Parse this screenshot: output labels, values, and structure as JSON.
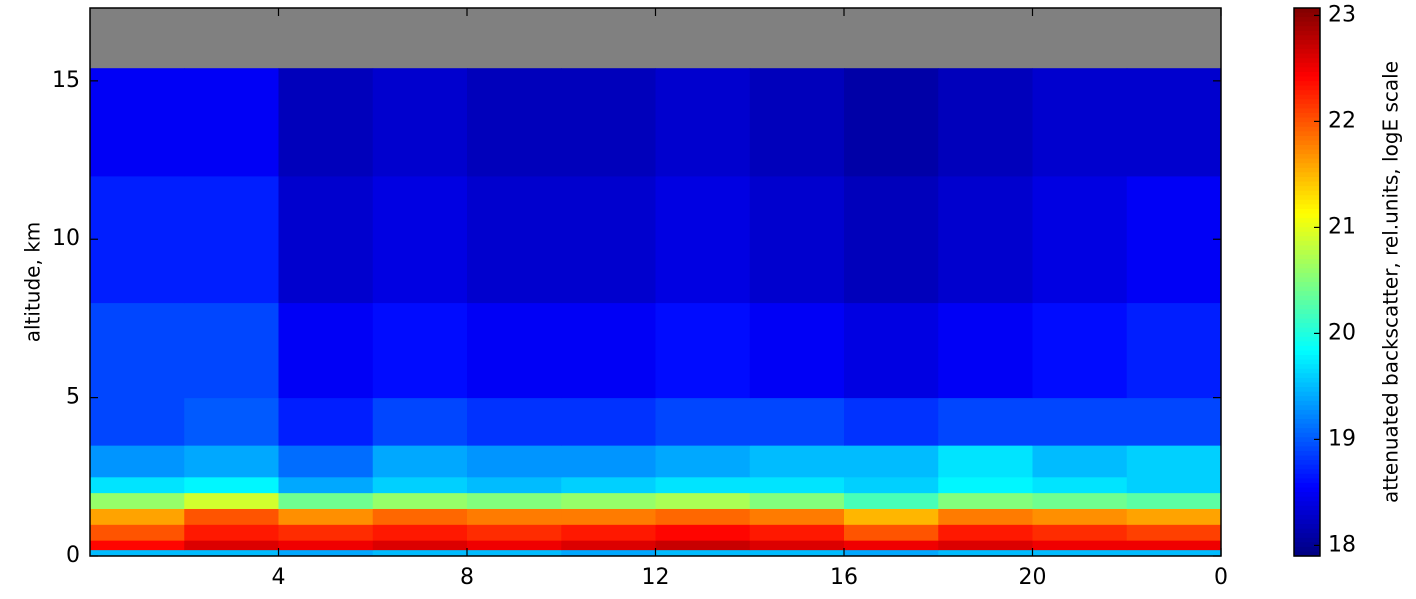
{
  "chart_data": {
    "type": "heatmap",
    "y_label": "altitude, km",
    "colorbar_label": "attenuated backscatter, rel.units, logE scale",
    "colormap": "jet",
    "missing_color": "#808080",
    "xlim": [
      0,
      24
    ],
    "xticks": [
      4,
      8,
      12,
      16,
      20,
      {
        "value": 24,
        "label": "0"
      }
    ],
    "ylim": [
      0,
      17.3
    ],
    "yticks": [
      0,
      5,
      10,
      15
    ],
    "clim": [
      17.9,
      23.07
    ],
    "cticks": [
      18,
      19,
      20,
      21,
      22,
      23
    ],
    "x_edges": [
      0,
      2,
      4,
      6,
      8,
      10,
      12,
      14,
      16,
      18,
      20,
      22,
      24
    ],
    "y_edges": [
      0,
      0.2,
      0.5,
      1,
      1.5,
      2,
      2.5,
      3.5,
      5,
      8,
      12,
      15.4
    ],
    "z": [
      [
        19.5,
        19.5,
        19.4,
        19.5,
        19.5,
        19.4,
        19.5,
        19.5,
        19.4,
        19.5,
        19.5,
        19.5
      ],
      [
        22.4,
        22.6,
        22.5,
        22.6,
        22.5,
        22.6,
        22.7,
        22.6,
        22.5,
        22.6,
        22.5,
        22.5
      ],
      [
        22.0,
        22.3,
        22.2,
        22.3,
        22.2,
        22.3,
        22.4,
        22.3,
        22.0,
        22.3,
        22.2,
        22.1
      ],
      [
        21.6,
        22.0,
        21.7,
        21.9,
        21.8,
        21.8,
        21.9,
        21.8,
        21.5,
        21.8,
        21.7,
        21.6
      ],
      [
        20.6,
        20.9,
        20.4,
        20.6,
        20.5,
        20.6,
        20.7,
        20.5,
        20.2,
        20.5,
        20.4,
        20.3
      ],
      [
        19.7,
        19.8,
        19.4,
        19.6,
        19.5,
        19.6,
        19.7,
        19.7,
        19.6,
        19.8,
        19.7,
        19.6
      ],
      [
        19.3,
        19.4,
        19.1,
        19.4,
        19.3,
        19.3,
        19.4,
        19.5,
        19.5,
        19.7,
        19.5,
        19.6
      ],
      [
        18.9,
        19.0,
        18.7,
        18.9,
        18.8,
        18.8,
        18.9,
        18.9,
        18.8,
        18.9,
        18.9,
        18.9
      ],
      [
        18.9,
        18.9,
        18.5,
        18.6,
        18.5,
        18.5,
        18.6,
        18.5,
        18.4,
        18.5,
        18.6,
        18.7
      ],
      [
        18.7,
        18.7,
        18.3,
        18.4,
        18.3,
        18.3,
        18.4,
        18.3,
        18.2,
        18.3,
        18.4,
        18.5
      ],
      [
        18.5,
        18.5,
        18.2,
        18.3,
        18.2,
        18.2,
        18.3,
        18.2,
        18.1,
        18.2,
        18.3,
        18.3
      ]
    ]
  }
}
